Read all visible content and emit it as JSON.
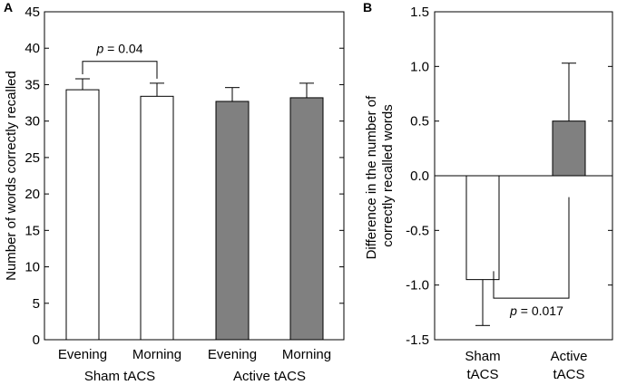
{
  "chart_data": [
    {
      "panel": "A",
      "type": "bar",
      "ylabel": "Number of words correctly recalled",
      "ylim": [
        0,
        45
      ],
      "yticks": [
        0,
        5,
        10,
        15,
        20,
        25,
        30,
        35,
        40,
        45
      ],
      "bars": [
        {
          "label": "Evening",
          "group": "Sham tACS",
          "value": 34.3,
          "error": 1.5,
          "color": "#ffffff"
        },
        {
          "label": "Morning",
          "group": "Sham tACS",
          "value": 33.4,
          "error": 1.8,
          "color": "#ffffff"
        },
        {
          "label": "Evening",
          "group": "Active tACS",
          "value": 32.7,
          "error": 1.9,
          "color": "#808080"
        },
        {
          "label": "Morning",
          "group": "Active tACS",
          "value": 33.2,
          "error": 2.0,
          "color": "#808080"
        }
      ],
      "groups": [
        "Sham tACS",
        "Active tACS"
      ],
      "annotation": {
        "text_italic": "p",
        "text_rest": " = 0.04",
        "between": [
          0,
          1
        ],
        "bracket_y": 38.2
      }
    },
    {
      "panel": "B",
      "type": "bar",
      "ylabel_line1": "Difference in the number of",
      "ylabel_line2": "correctly recalled words",
      "ylim": [
        -1.5,
        1.5
      ],
      "yticks": [
        "-1.5",
        "-1.0",
        "-0.5",
        "0.0",
        "0.5",
        "1.0",
        "1.5"
      ],
      "bars": [
        {
          "label_line1": "Sham",
          "label_line2": "tACS",
          "value": -0.95,
          "error": 0.42,
          "color": "#ffffff"
        },
        {
          "label_line1": "Active",
          "label_line2": "tACS",
          "value": 0.5,
          "error": 0.53,
          "color": "#808080"
        }
      ],
      "annotation": {
        "text_italic": "p",
        "text_rest": " = 0.017",
        "between": [
          0,
          1
        ],
        "bracket_y": -1.12
      }
    }
  ]
}
